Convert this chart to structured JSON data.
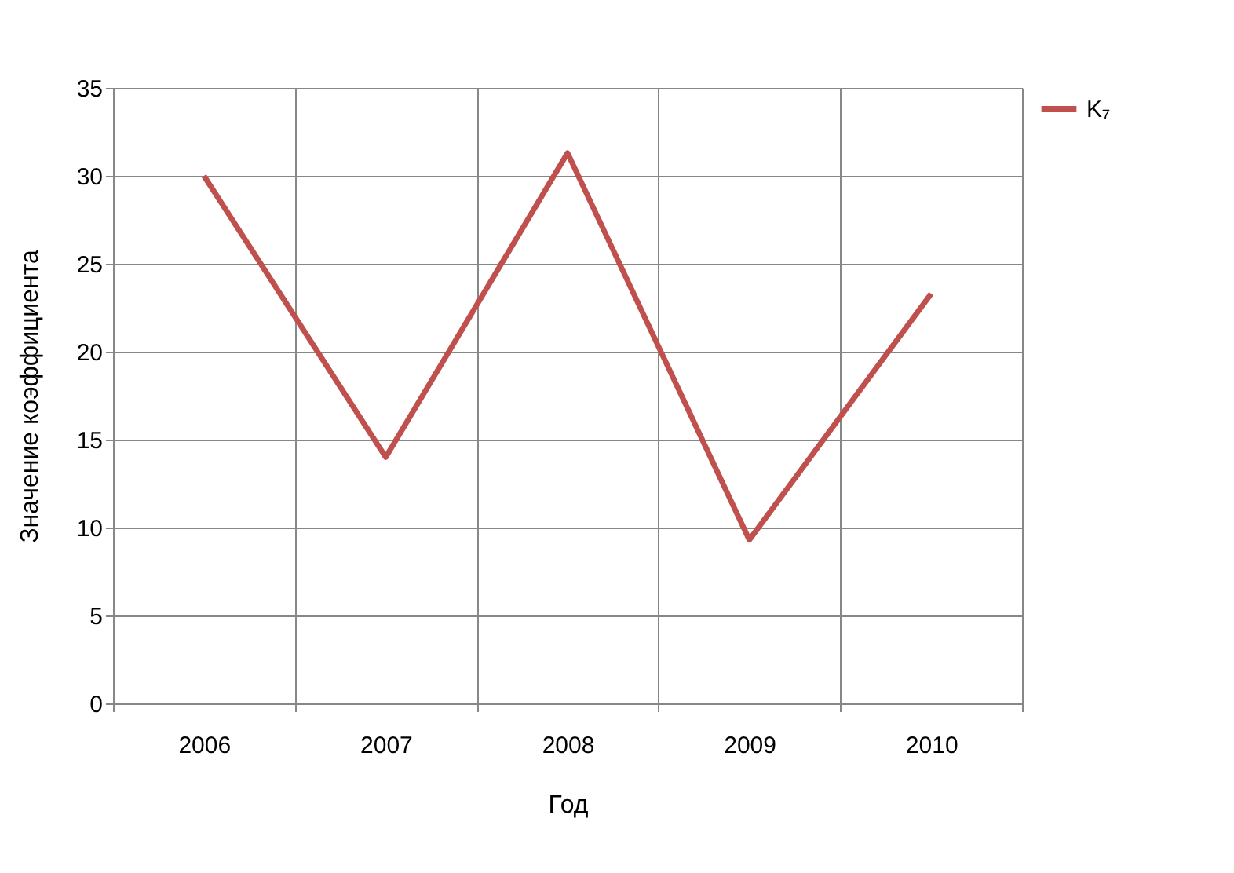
{
  "chart_data": {
    "type": "line",
    "xlabel": "Год",
    "ylabel": "Значение коэффициента",
    "categories": [
      "2006",
      "2007",
      "2008",
      "2009",
      "2010"
    ],
    "series": [
      {
        "name": "K₇",
        "color": "#c0504d",
        "values": [
          30,
          14,
          31.3,
          9.3,
          23.3
        ]
      }
    ],
    "ylim": [
      0,
      35
    ],
    "yticks": [
      0,
      5,
      10,
      15,
      20,
      25,
      30,
      35
    ],
    "grid": true,
    "legend": "right",
    "marker": "none",
    "line_style": "solid"
  }
}
